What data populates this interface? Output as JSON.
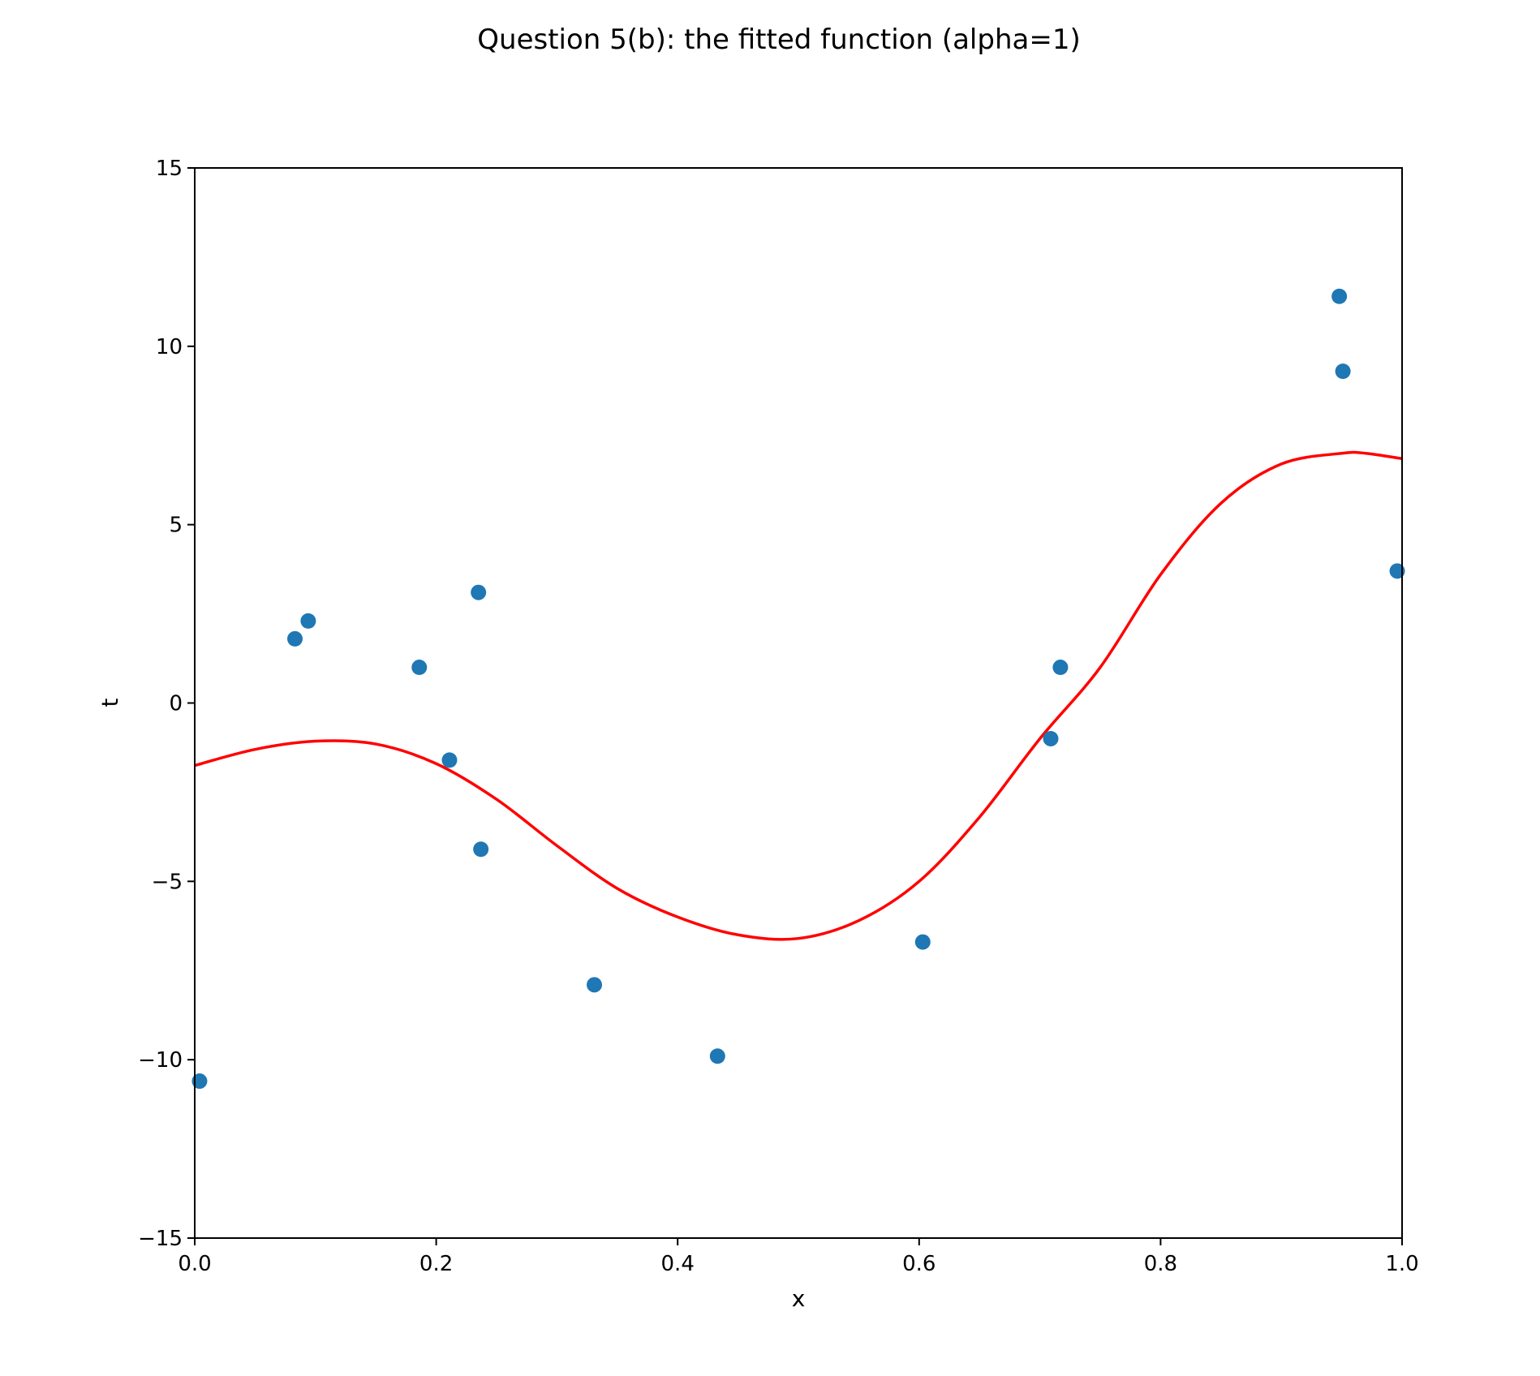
{
  "chart_data": {
    "type": "scatter",
    "title": "Question 5(b): the fitted function (alpha=1)",
    "xlabel": "x",
    "ylabel": "t",
    "xlim": [
      0.0,
      1.0
    ],
    "ylim": [
      -15,
      15
    ],
    "xticks": [
      "0.0",
      "0.2",
      "0.4",
      "0.6",
      "0.8",
      "1.0"
    ],
    "xtick_values": [
      0.0,
      0.2,
      0.4,
      0.6,
      0.8,
      1.0
    ],
    "yticks": [
      "15",
      "10",
      "5",
      "0",
      "−5",
      "−10",
      "−15"
    ],
    "ytick_values": [
      15,
      10,
      5,
      0,
      -5,
      -10,
      -15
    ],
    "grid": false,
    "series": [
      {
        "kind": "scatter",
        "color": "#1f77b4",
        "x": [
          0.004,
          0.083,
          0.094,
          0.186,
          0.211,
          0.235,
          0.237,
          0.331,
          0.433,
          0.603,
          0.709,
          0.717,
          0.948,
          0.951,
          0.996
        ],
        "y": [
          -10.6,
          1.8,
          2.3,
          1.0,
          -1.6,
          3.1,
          -4.1,
          -7.9,
          -9.9,
          -6.7,
          -1.0,
          1.0,
          11.4,
          9.3,
          3.7
        ]
      },
      {
        "kind": "line",
        "color": "#ff0000",
        "x": [
          0.0,
          0.05,
          0.1,
          0.15,
          0.2,
          0.25,
          0.3,
          0.35,
          0.4,
          0.45,
          0.5,
          0.55,
          0.6,
          0.65,
          0.7,
          0.75,
          0.8,
          0.85,
          0.9,
          0.95,
          0.97,
          1.0
        ],
        "y": [
          -1.75,
          -1.3,
          -1.07,
          -1.15,
          -1.7,
          -2.7,
          -4.0,
          -5.2,
          -6.0,
          -6.5,
          -6.6,
          -6.1,
          -5.0,
          -3.2,
          -1.0,
          1.0,
          3.6,
          5.6,
          6.7,
          7.0,
          7.0,
          6.85
        ]
      }
    ]
  }
}
